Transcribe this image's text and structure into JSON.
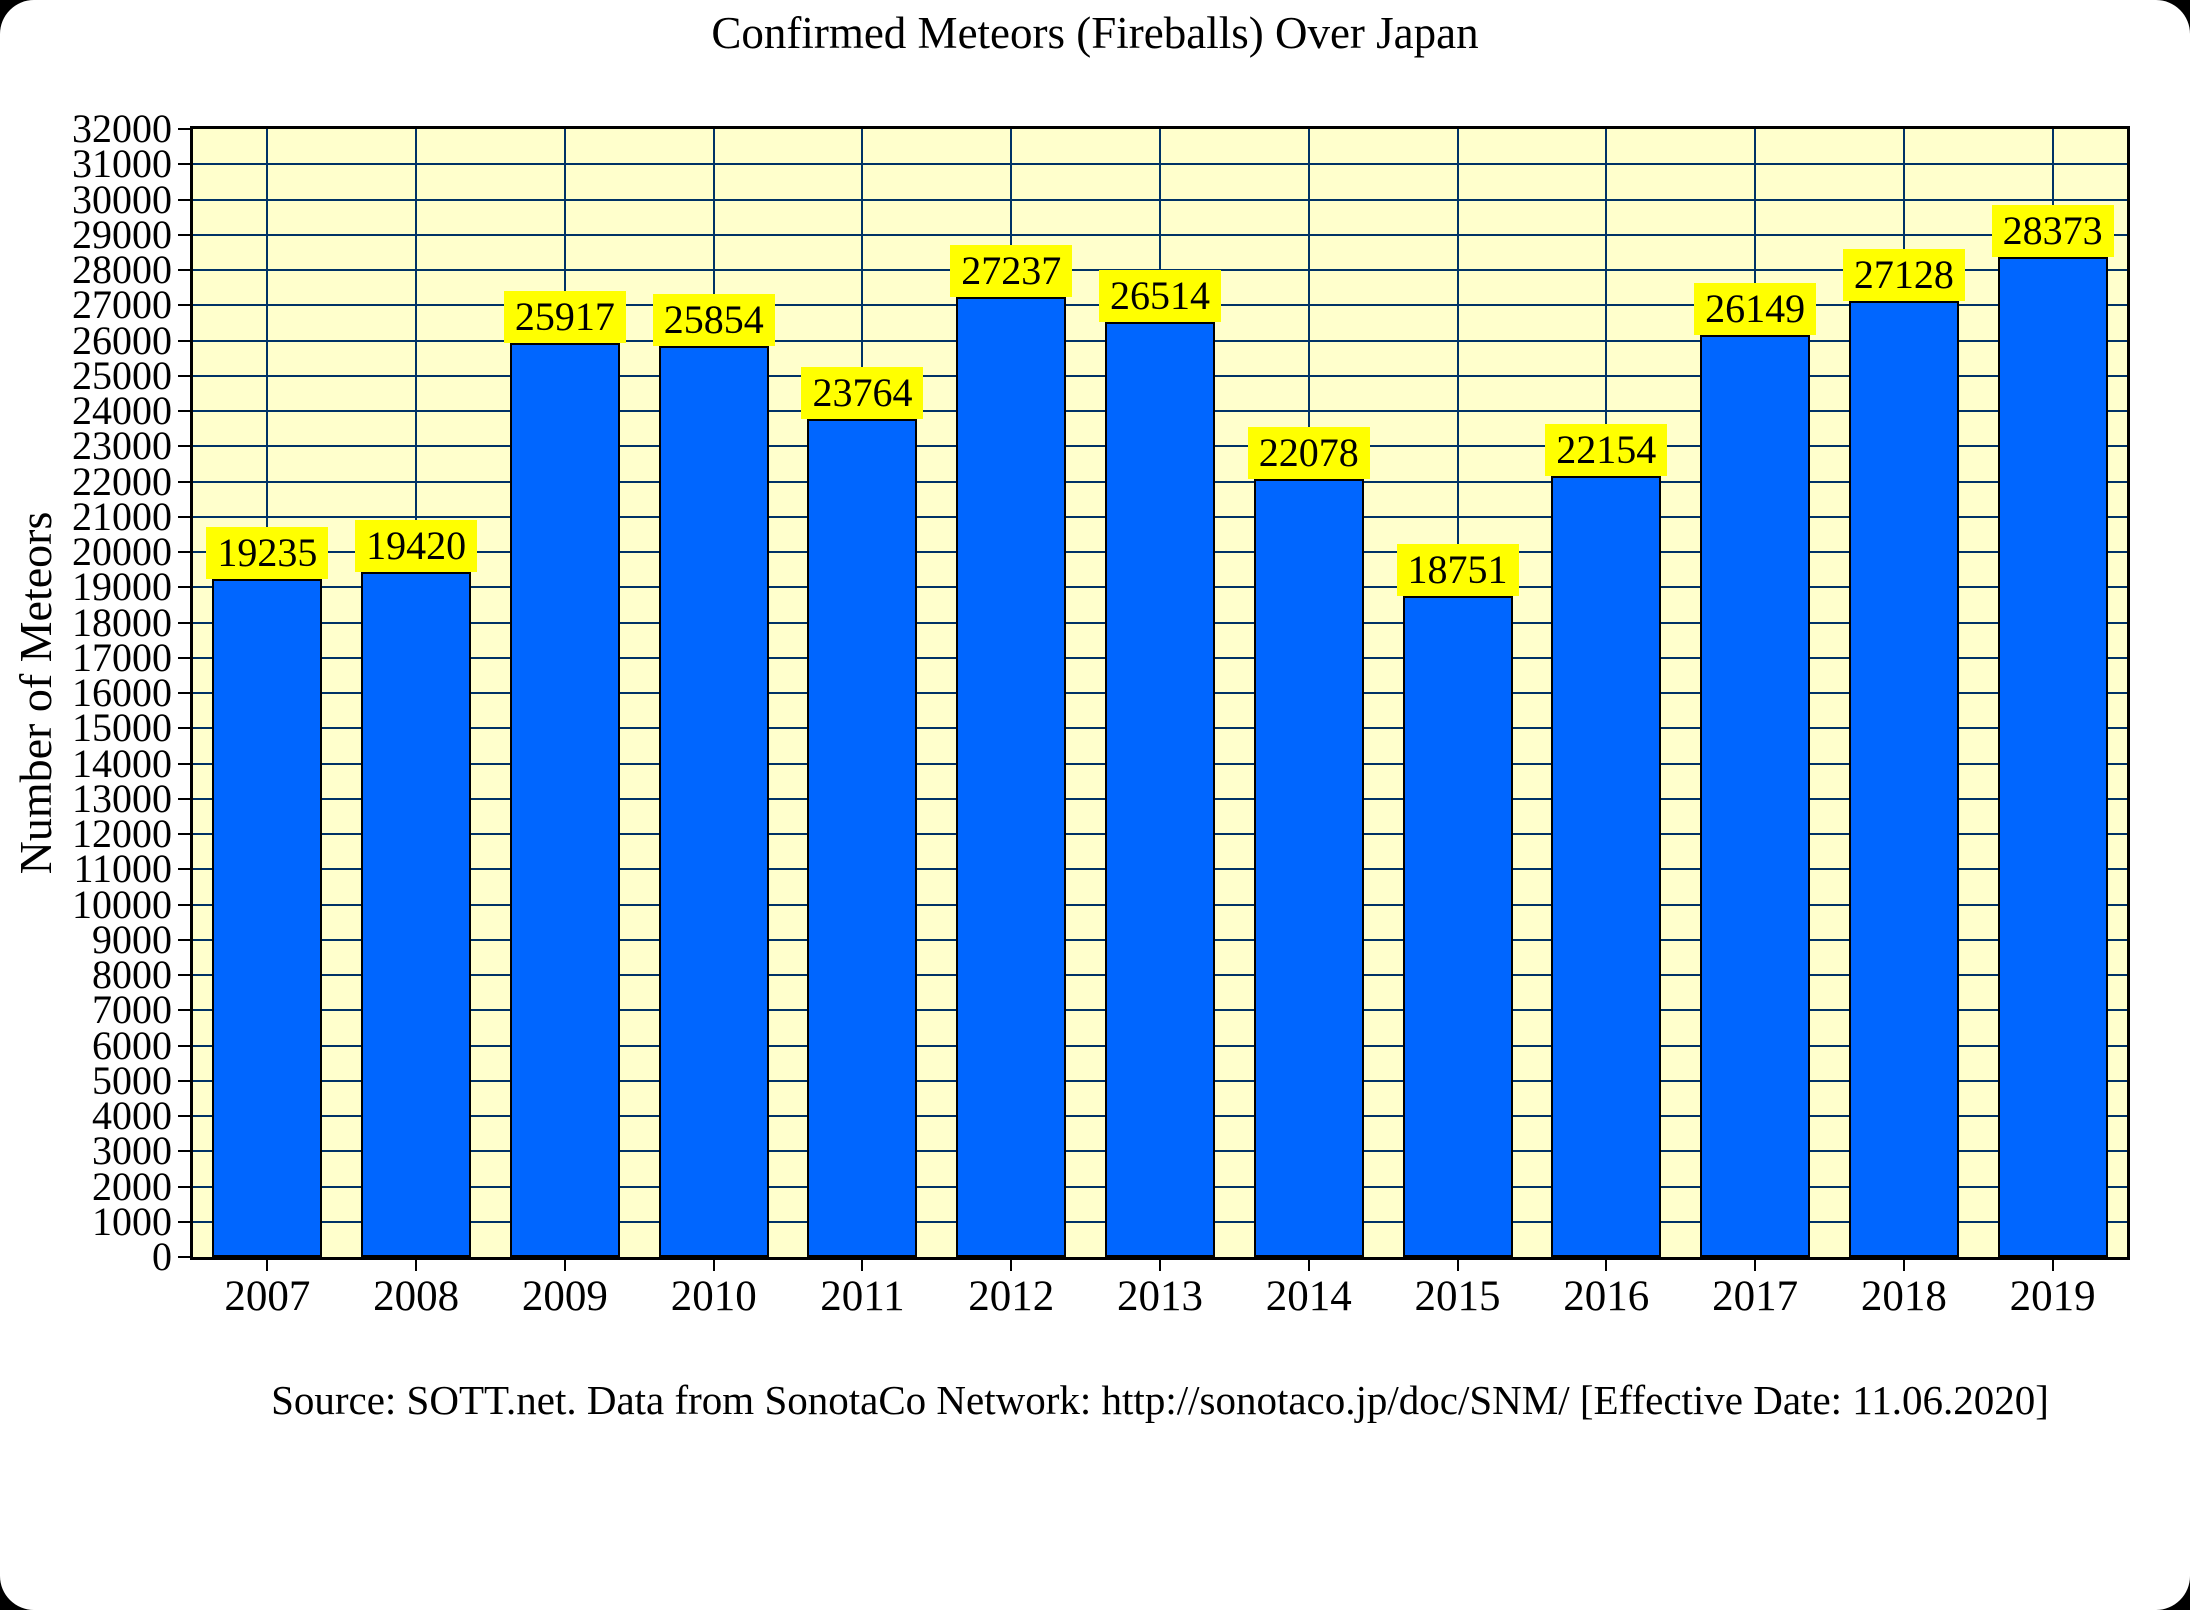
{
  "page": {
    "title": "Confirmed Meteors (Fireballs) Over Japan",
    "source_line": "Source: SOTT.net. Data from SonotaCo Network: http://sonotaco.jp/doc/SNM/ [Effective Date: 11.06.2020]"
  },
  "chart_data": {
    "type": "bar",
    "title": "Confirmed Meteors (Fireballs) Over Japan",
    "xlabel": "",
    "ylabel": "Number of Meteors",
    "categories": [
      "2007",
      "2008",
      "2009",
      "2010",
      "2011",
      "2012",
      "2013",
      "2014",
      "2015",
      "2016",
      "2017",
      "2018",
      "2019"
    ],
    "values": [
      19235,
      19420,
      25917,
      25854,
      23764,
      27237,
      26514,
      22078,
      18751,
      22154,
      26149,
      27128,
      28373
    ],
    "ylim": [
      0,
      32000
    ],
    "ytick_step": 1000,
    "grid": true,
    "legend": "none",
    "data_labels": true,
    "colors": {
      "bar_fill": "#0066FF",
      "bar_border": "#000000",
      "plot_background": "#FFFFCC",
      "grid_line": "#003366",
      "value_label_background": "#FFFF00",
      "value_label_text": "#000000",
      "frame": "#000000",
      "page_background": "#FFFFFF",
      "outer_background": "#000000"
    }
  }
}
